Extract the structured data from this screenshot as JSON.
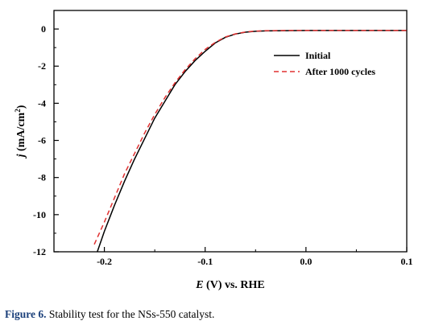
{
  "chart_data": {
    "type": "line",
    "title": "",
    "xlabel": {
      "symbol": "E",
      "rest": " (V) vs. RHE"
    },
    "ylabel": {
      "symbol": "j",
      "unit": " (mA/cm",
      "sup": "2",
      "close": ")"
    },
    "xlim": [
      -0.25,
      0.1
    ],
    "ylim": [
      -12,
      1
    ],
    "x_major_ticks": [
      -0.2,
      -0.1,
      0.0,
      0.1
    ],
    "x_tick_labels": [
      "-0.2",
      "-0.1",
      "0.0",
      "0.1"
    ],
    "y_major_ticks": [
      0,
      -2,
      -4,
      -6,
      -8,
      -10,
      -12
    ],
    "y_tick_labels": [
      "0",
      "-2",
      "-4",
      "-6",
      "-8",
      "-10",
      "-12"
    ],
    "grid": false,
    "legend_position": "top-right",
    "series": [
      {
        "name": "Initial",
        "style": "solid",
        "color": "#000000",
        "x": [
          -0.207,
          -0.2,
          -0.19,
          -0.18,
          -0.17,
          -0.16,
          -0.15,
          -0.14,
          -0.13,
          -0.12,
          -0.11,
          -0.1,
          -0.09,
          -0.08,
          -0.07,
          -0.06,
          -0.05,
          -0.04,
          -0.02,
          0.0,
          0.05,
          0.1
        ],
        "y": [
          -12.0,
          -10.9,
          -9.5,
          -8.2,
          -7.0,
          -5.9,
          -4.8,
          -3.9,
          -3.0,
          -2.3,
          -1.7,
          -1.2,
          -0.75,
          -0.45,
          -0.27,
          -0.17,
          -0.12,
          -0.1,
          -0.09,
          -0.08,
          -0.08,
          -0.08
        ]
      },
      {
        "name": "After 1000 cycles",
        "style": "dashed",
        "color": "#e03030",
        "x": [
          -0.21,
          -0.2,
          -0.19,
          -0.18,
          -0.17,
          -0.16,
          -0.15,
          -0.14,
          -0.13,
          -0.12,
          -0.11,
          -0.1,
          -0.09,
          -0.08,
          -0.07,
          -0.06,
          -0.05,
          -0.04,
          -0.02,
          0.0,
          0.05,
          0.1
        ],
        "y": [
          -11.6,
          -10.4,
          -9.1,
          -7.8,
          -6.7,
          -5.6,
          -4.6,
          -3.7,
          -2.9,
          -2.2,
          -1.6,
          -1.1,
          -0.72,
          -0.43,
          -0.26,
          -0.16,
          -0.11,
          -0.09,
          -0.08,
          -0.08,
          -0.08,
          -0.08
        ]
      }
    ]
  },
  "caption": {
    "label": "Figure 6.",
    "text": " Stability test for the NSs-550 catalyst."
  }
}
